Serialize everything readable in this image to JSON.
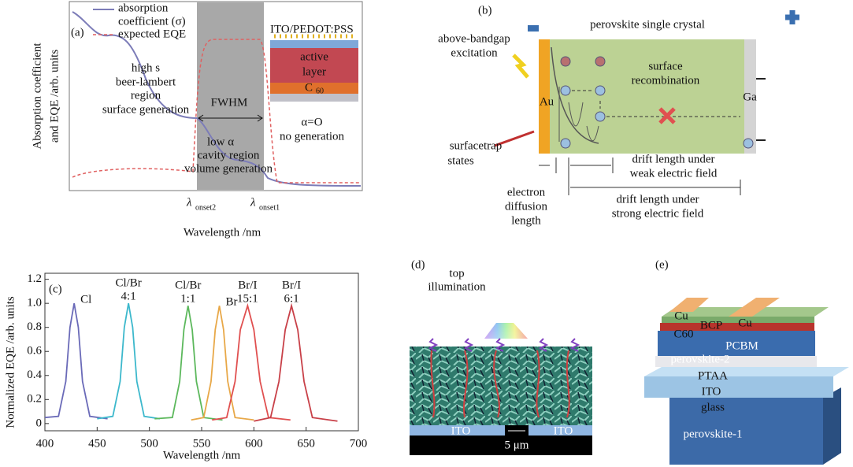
{
  "panel_a": {
    "label": "(a)",
    "y_label": [
      "Absorption coefficient",
      "and EQE /arb. units"
    ],
    "legend": [
      "absorption",
      "coefficient (σ)",
      "expected EQE"
    ],
    "device": [
      "ITO/PEDOT:PSS",
      "active",
      "layer",
      "C",
      "60"
    ],
    "annotations": [
      "high s",
      "beer-lambert",
      "region",
      "surface generation",
      "FWHM",
      "α=O",
      "no generation",
      "low α",
      "cavity region",
      "volume generation"
    ],
    "onset2": [
      "λ",
      "onset2"
    ],
    "onset1": [
      "λ",
      "onset1"
    ],
    "x_label": "Wavelength /nm"
  },
  "panel_b": {
    "label": "(b)",
    "title": "perovskite single crystal",
    "excitation": [
      "above-bandgap",
      "excitation"
    ],
    "recombination": [
      "surface",
      "recombination"
    ],
    "left_electrode": "Au",
    "right_electrode": "Ga",
    "trap": [
      "surfacetrap",
      "states"
    ],
    "weak": [
      "drift length under",
      "weak electric field"
    ],
    "diffusion": [
      "electron",
      "diffusion",
      "length"
    ],
    "strong": [
      "drift length under",
      "strong electric field"
    ]
  },
  "chart_data": {
    "type": "line",
    "label": "(c)",
    "y_label": "Normalized EQE /arb. units",
    "x_label": "Wavelength /nm",
    "xlim": [
      400,
      700
    ],
    "xticks": [
      400,
      450,
      500,
      550,
      600,
      650,
      700
    ],
    "ylim": [
      -0.06,
      1.25
    ],
    "yticks": [
      0,
      0.2,
      0.4,
      0.6,
      0.8,
      {
        "value": 1.0,
        "label": "1.0"
      },
      1.2
    ],
    "series": [
      {
        "label": [
          "Cl"
        ],
        "color": "#6a6ab8",
        "x": [
          400,
          413,
          420,
          424,
          428,
          432,
          436,
          443,
          460
        ],
        "values": [
          0.05,
          0.06,
          0.35,
          0.8,
          1.0,
          0.8,
          0.35,
          0.06,
          0.04
        ]
      },
      {
        "label": [
          "Cl/Br",
          "4:1"
        ],
        "color": "#3cb8cc",
        "x": [
          450,
          465,
          472,
          476,
          480,
          484,
          488,
          495,
          510
        ],
        "values": [
          0.04,
          0.06,
          0.35,
          0.8,
          1.0,
          0.8,
          0.35,
          0.06,
          0.04
        ]
      },
      {
        "label": [
          "Cl/Br",
          "1:1"
        ],
        "color": "#5cb85c",
        "x": [
          505,
          522,
          529,
          533,
          537,
          541,
          545,
          552,
          570
        ],
        "values": [
          0.04,
          0.05,
          0.35,
          0.78,
          0.98,
          0.78,
          0.35,
          0.05,
          0.03
        ]
      },
      {
        "label": [
          "Br"
        ],
        "color": "#e8a848",
        "x": [
          540,
          552,
          559,
          563,
          567,
          571,
          575,
          582,
          600
        ],
        "values": [
          0.03,
          0.05,
          0.35,
          0.78,
          0.98,
          0.78,
          0.35,
          0.05,
          0.03
        ]
      },
      {
        "label": [
          "Br/I",
          "15:1"
        ],
        "color": "#e05050",
        "x": [
          560,
          574,
          582,
          587,
          594,
          600,
          606,
          614,
          635
        ],
        "values": [
          0.03,
          0.05,
          0.35,
          0.78,
          0.98,
          0.78,
          0.35,
          0.05,
          0.03
        ]
      },
      {
        "label": [
          "Br/I",
          "6:1"
        ],
        "color": "#c84048",
        "x": [
          600,
          616,
          624,
          630,
          636,
          642,
          648,
          656,
          680
        ],
        "values": [
          0.02,
          0.05,
          0.35,
          0.78,
          0.98,
          0.78,
          0.35,
          0.05,
          0.02
        ]
      }
    ]
  },
  "panel_d": {
    "label": "(d)",
    "illumination": [
      "top",
      "illumination"
    ],
    "left": "ITO",
    "right": "ITO",
    "gap": "5 μm"
  },
  "panel_e": {
    "label": "(e)",
    "layers": [
      "Cu",
      "BCP",
      "Cu",
      "C60",
      "PCBM",
      "perovskite-2",
      "PTAA",
      "ITO",
      "glass",
      "perovskite-1"
    ]
  }
}
